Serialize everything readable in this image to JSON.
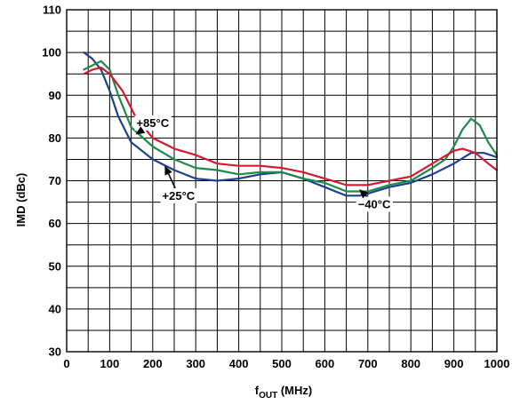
{
  "chart_data": {
    "type": "line",
    "title": "",
    "ylabel": "IMD (dBc)",
    "xlabel": {
      "main": "f",
      "sub": "OUT",
      "suffix": " (MHz)"
    },
    "xlim": [
      0,
      1000
    ],
    "ylim": [
      30,
      110
    ],
    "x_ticks": [
      0,
      100,
      200,
      300,
      400,
      500,
      600,
      700,
      800,
      900,
      1000
    ],
    "y_ticks": [
      30,
      40,
      50,
      60,
      70,
      80,
      90,
      100,
      110
    ],
    "grid": true,
    "minor_x_step": 50,
    "minor_y_step": 5,
    "series": [
      {
        "color": "#1f3f8f",
        "points": [
          [
            40,
            100
          ],
          [
            60,
            98.5
          ],
          [
            80,
            96
          ],
          [
            100,
            91
          ],
          [
            120,
            85
          ],
          [
            150,
            79
          ],
          [
            200,
            75
          ],
          [
            250,
            72.5
          ],
          [
            300,
            70.5
          ],
          [
            350,
            70
          ],
          [
            400,
            70.5
          ],
          [
            450,
            71.5
          ],
          [
            500,
            72
          ],
          [
            550,
            70.5
          ],
          [
            600,
            68.5
          ],
          [
            650,
            66.5
          ],
          [
            680,
            66.5
          ],
          [
            700,
            67
          ],
          [
            750,
            68.5
          ],
          [
            800,
            69.5
          ],
          [
            850,
            71.5
          ],
          [
            900,
            74
          ],
          [
            940,
            76.5
          ],
          [
            970,
            76.5
          ],
          [
            1000,
            75.5
          ]
        ]
      },
      {
        "color": "#1e8a4a",
        "points": [
          [
            40,
            96
          ],
          [
            60,
            97
          ],
          [
            80,
            98
          ],
          [
            100,
            96
          ],
          [
            120,
            90
          ],
          [
            150,
            82.5
          ],
          [
            200,
            78
          ],
          [
            250,
            75
          ],
          [
            300,
            73
          ],
          [
            350,
            72.5
          ],
          [
            400,
            71.5
          ],
          [
            450,
            72
          ],
          [
            500,
            72
          ],
          [
            550,
            70.5
          ],
          [
            600,
            69.5
          ],
          [
            650,
            67.5
          ],
          [
            700,
            67.5
          ],
          [
            750,
            69
          ],
          [
            800,
            70
          ],
          [
            850,
            73
          ],
          [
            880,
            75
          ],
          [
            900,
            78
          ],
          [
            920,
            82
          ],
          [
            940,
            84.5
          ],
          [
            960,
            83
          ],
          [
            980,
            79
          ],
          [
            1000,
            76
          ]
        ]
      },
      {
        "color": "#d7192e",
        "points": [
          [
            40,
            95
          ],
          [
            60,
            96
          ],
          [
            80,
            96.5
          ],
          [
            100,
            95
          ],
          [
            130,
            91
          ],
          [
            160,
            85
          ],
          [
            200,
            80
          ],
          [
            250,
            77.5
          ],
          [
            300,
            76
          ],
          [
            350,
            74
          ],
          [
            400,
            73.5
          ],
          [
            450,
            73.5
          ],
          [
            500,
            73
          ],
          [
            550,
            72
          ],
          [
            600,
            70.5
          ],
          [
            650,
            69
          ],
          [
            700,
            69
          ],
          [
            750,
            70
          ],
          [
            800,
            71
          ],
          [
            850,
            74
          ],
          [
            900,
            77
          ],
          [
            920,
            77.5
          ],
          [
            950,
            76.5
          ],
          [
            980,
            74
          ],
          [
            1000,
            72.5
          ]
        ]
      }
    ],
    "annotations": [
      {
        "text": "+85°C",
        "x": 200,
        "y": 83.5,
        "arrow_to": [
          160,
          80.8
        ]
      },
      {
        "text": "+25°C",
        "x": 260,
        "y": 66.5,
        "arrow_to": [
          228,
          73.5
        ]
      },
      {
        "text": "−40°C",
        "x": 715,
        "y": 64.5,
        "arrow_to": [
          680,
          68
        ]
      }
    ]
  }
}
